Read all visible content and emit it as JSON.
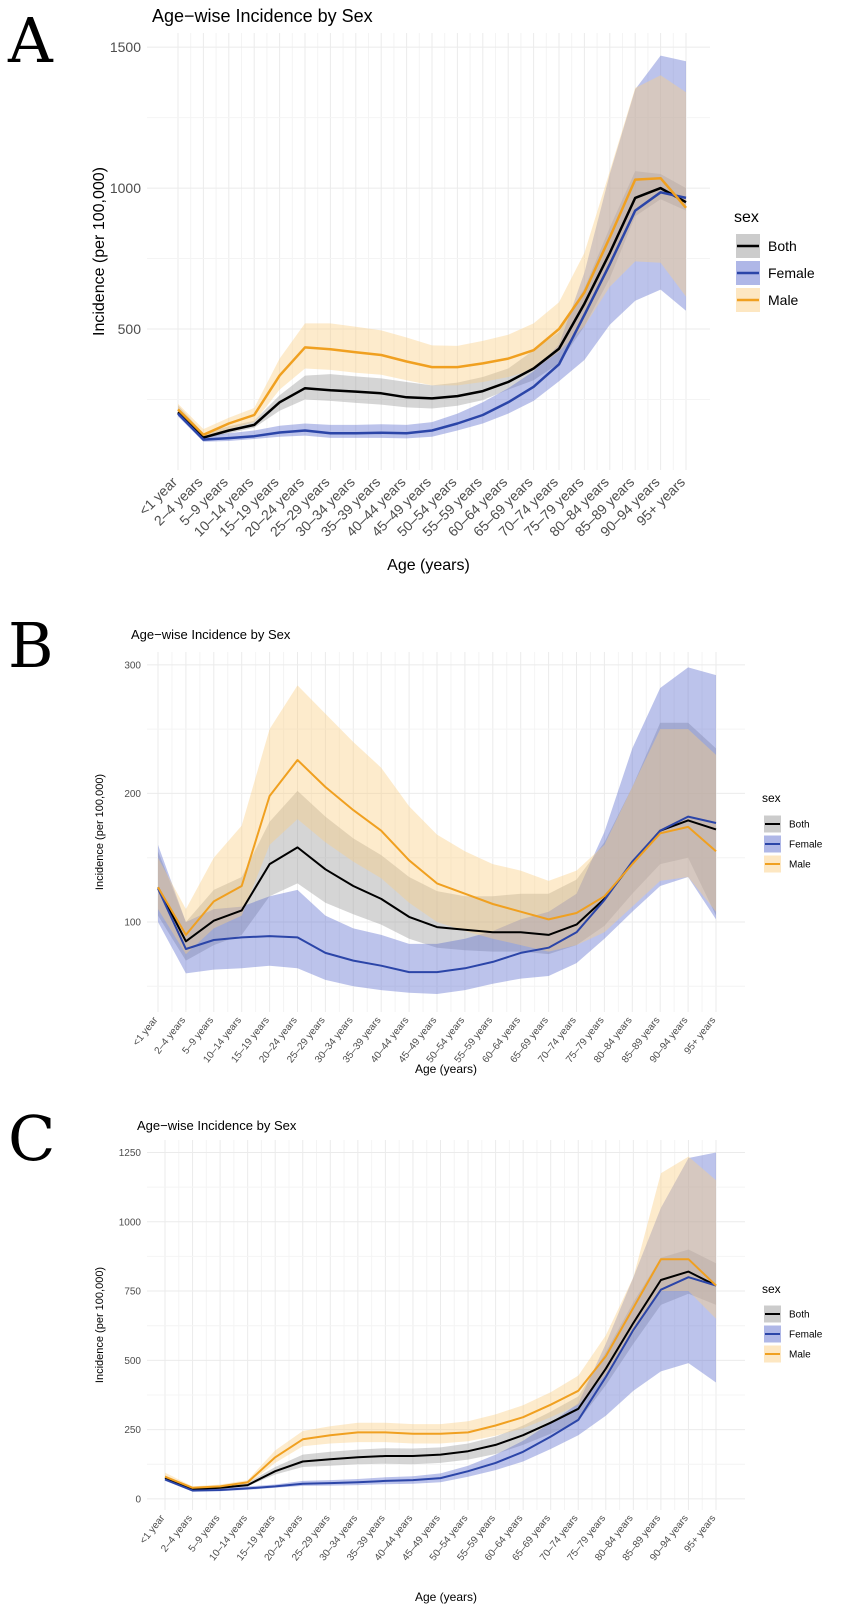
{
  "chart_data": [
    {
      "panel": "A",
      "type": "line",
      "title": "Age−wise Incidence by Sex",
      "xlabel": "Age (years)",
      "ylabel": "Incidence (per 100,000)",
      "ylim": [
        0,
        1550
      ],
      "yticks": [
        500,
        1000,
        1500
      ],
      "categories": [
        "<1 year",
        "2–4 years",
        "5–9 years",
        "10–14 years",
        "15–19 years",
        "20–24 years",
        "25–29 years",
        "30–34 years",
        "35–39 years",
        "40–44 years",
        "45–49 years",
        "50–54 years",
        "55–59 years",
        "60–64 years",
        "65–69 years",
        "70–74 years",
        "75–79 years",
        "80–84 years",
        "85–89 years",
        "90–94 years",
        "95+ years"
      ],
      "legend_title": "sex",
      "legend_position": "right",
      "series": [
        {
          "name": "Both",
          "color": "#000000",
          "fill": "#9a9a9a",
          "values": [
            205,
            115,
            140,
            160,
            240,
            290,
            283,
            278,
            272,
            258,
            254,
            262,
            280,
            312,
            360,
            430,
            590,
            770,
            965,
            1000,
            950
          ],
          "lower": [
            195,
            110,
            130,
            150,
            210,
            250,
            245,
            238,
            232,
            222,
            218,
            228,
            248,
            285,
            318,
            378,
            510,
            680,
            900,
            960,
            920
          ],
          "upper": [
            230,
            130,
            155,
            175,
            265,
            335,
            340,
            332,
            325,
            312,
            300,
            310,
            330,
            360,
            425,
            490,
            645,
            860,
            1060,
            1050,
            1000
          ]
        },
        {
          "name": "Female",
          "color": "#2b45a8",
          "fill": "#5f6fd0",
          "values": [
            200,
            108,
            113,
            120,
            133,
            140,
            130,
            130,
            132,
            130,
            140,
            165,
            195,
            240,
            295,
            375,
            550,
            730,
            920,
            985,
            965
          ],
          "lower": [
            190,
            100,
            103,
            110,
            118,
            122,
            114,
            114,
            114,
            112,
            118,
            140,
            165,
            200,
            245,
            315,
            390,
            515,
            600,
            640,
            565
          ],
          "upper": [
            215,
            120,
            130,
            140,
            157,
            165,
            160,
            160,
            162,
            160,
            170,
            200,
            240,
            290,
            350,
            445,
            700,
            1050,
            1350,
            1470,
            1450
          ]
        },
        {
          "name": "Male",
          "color": "#f0a020",
          "fill": "#fbcf86",
          "values": [
            215,
            125,
            165,
            195,
            335,
            435,
            428,
            418,
            408,
            385,
            365,
            365,
            378,
            395,
            425,
            500,
            630,
            825,
            1030,
            1035,
            930
          ],
          "lower": [
            200,
            115,
            145,
            170,
            285,
            360,
            355,
            345,
            338,
            318,
            300,
            300,
            312,
            330,
            355,
            420,
            510,
            650,
            740,
            735,
            615
          ],
          "upper": [
            235,
            145,
            185,
            220,
            395,
            520,
            520,
            508,
            495,
            470,
            442,
            440,
            458,
            480,
            520,
            595,
            770,
            1060,
            1355,
            1400,
            1340
          ]
        }
      ]
    },
    {
      "panel": "B",
      "type": "line",
      "title": "Age−wise Incidence by Sex",
      "xlabel": "Age (years)",
      "ylabel": "Incidence (per 100,000)",
      "ylim": [
        30,
        310
      ],
      "yticks": [
        100,
        200,
        300
      ],
      "categories": [
        "<1 year",
        "2–4 years",
        "5–9 years",
        "10–14 years",
        "15–19 years",
        "20–24 years",
        "25–29 years",
        "30–34 years",
        "35–39 years",
        "40–44 years",
        "45–49 years",
        "50–54 years",
        "55–59 years",
        "60–64 years",
        "65–69 years",
        "70–74 years",
        "75–79 years",
        "80–84 years",
        "85–89 years",
        "90–94 years",
        "95+ years"
      ],
      "legend_title": "sex",
      "legend_position": "right",
      "series": [
        {
          "name": "Both",
          "color": "#000000",
          "fill": "#9a9a9a",
          "values": [
            127,
            85,
            101,
            109,
            145,
            158,
            141,
            128,
            118,
            104,
            96,
            94,
            92,
            92,
            90,
            98,
            118,
            146,
            171,
            179,
            172
          ],
          "lower": [
            105,
            70,
            82,
            90,
            120,
            130,
            115,
            106,
            98,
            87,
            80,
            78,
            77,
            77,
            75,
            82,
            97,
            122,
            145,
            150,
            105
          ],
          "upper": [
            155,
            100,
            125,
            135,
            178,
            202,
            182,
            165,
            152,
            135,
            124,
            120,
            120,
            122,
            122,
            133,
            162,
            205,
            255,
            255,
            235
          ]
        },
        {
          "name": "Female",
          "color": "#2b45a8",
          "fill": "#5f6fd0",
          "values": [
            126,
            79,
            86,
            88,
            89,
            88,
            76,
            70,
            66,
            61,
            61,
            64,
            69,
            76,
            80,
            92,
            117,
            147,
            171,
            182,
            177
          ],
          "lower": [
            100,
            60,
            63,
            64,
            66,
            64,
            55,
            50,
            47,
            45,
            44,
            47,
            52,
            56,
            58,
            68,
            87,
            108,
            128,
            135,
            102
          ],
          "upper": [
            160,
            100,
            110,
            112,
            120,
            125,
            105,
            95,
            90,
            83,
            83,
            87,
            93,
            102,
            108,
            122,
            170,
            235,
            282,
            298,
            292
          ]
        },
        {
          "name": "Male",
          "color": "#f0a020",
          "fill": "#fbcf86",
          "values": [
            127,
            90,
            116,
            128,
            198,
            226,
            205,
            187,
            171,
            148,
            130,
            122,
            114,
            108,
            102,
            107,
            120,
            145,
            169,
            174,
            155
          ],
          "lower": [
            110,
            75,
            95,
            105,
            160,
            180,
            162,
            147,
            134,
            115,
            100,
            93,
            87,
            82,
            77,
            82,
            92,
            112,
            132,
            135,
            108
          ],
          "upper": [
            150,
            110,
            150,
            175,
            250,
            284,
            262,
            240,
            220,
            190,
            168,
            155,
            145,
            140,
            132,
            140,
            160,
            205,
            250,
            250,
            230
          ]
        }
      ]
    },
    {
      "panel": "C",
      "type": "line",
      "title": "Age−wise Incidence by Sex",
      "xlabel": "Age (years)",
      "ylabel": "Incidence (per 100,000)",
      "ylim": [
        -40,
        1295
      ],
      "yticks": [
        0,
        250,
        500,
        750,
        1000,
        1250
      ],
      "categories": [
        "<1 year",
        "2–4 years",
        "5–9 years",
        "10–14 years",
        "15–19 years",
        "20–24 years",
        "25–29 years",
        "30–34 years",
        "35–39 years",
        "40–44 years",
        "45–49 years",
        "50–54 years",
        "55–59 years",
        "60–64 years",
        "65–69 years",
        "70–74 years",
        "75–79 years",
        "80–84 years",
        "85–89 years",
        "90–94 years",
        "95+ years"
      ],
      "legend_title": "sex",
      "legend_position": "right",
      "series": [
        {
          "name": "Both",
          "color": "#000000",
          "fill": "#9a9a9a",
          "values": [
            75,
            35,
            40,
            50,
            100,
            135,
            143,
            150,
            155,
            155,
            160,
            172,
            195,
            230,
            275,
            325,
            470,
            635,
            790,
            820,
            770
          ],
          "lower": [
            70,
            32,
            36,
            46,
            88,
            115,
            120,
            125,
            127,
            125,
            130,
            142,
            162,
            195,
            235,
            280,
            410,
            560,
            700,
            740,
            700
          ],
          "upper": [
            85,
            40,
            46,
            58,
            115,
            160,
            170,
            178,
            183,
            182,
            186,
            200,
            225,
            265,
            315,
            370,
            530,
            710,
            870,
            900,
            850
          ]
        },
        {
          "name": "Female",
          "color": "#2b45a8",
          "fill": "#5f6fd0",
          "values": [
            70,
            30,
            32,
            38,
            45,
            55,
            57,
            60,
            65,
            68,
            75,
            100,
            130,
            170,
            225,
            285,
            440,
            610,
            755,
            800,
            770
          ],
          "lower": [
            65,
            27,
            28,
            33,
            40,
            47,
            48,
            50,
            53,
            55,
            60,
            80,
            104,
            135,
            180,
            230,
            300,
            390,
            460,
            490,
            420
          ],
          "upper": [
            80,
            35,
            38,
            45,
            52,
            65,
            68,
            72,
            78,
            82,
            92,
            120,
            160,
            210,
            275,
            345,
            560,
            800,
            1050,
            1230,
            1250
          ]
        },
        {
          "name": "Male",
          "color": "#f0a020",
          "fill": "#fbcf86",
          "values": [
            80,
            40,
            45,
            60,
            150,
            215,
            230,
            240,
            240,
            235,
            235,
            240,
            265,
            295,
            340,
            390,
            515,
            690,
            865,
            865,
            770
          ],
          "lower": [
            70,
            35,
            40,
            53,
            130,
            190,
            200,
            205,
            205,
            200,
            200,
            208,
            228,
            255,
            295,
            340,
            450,
            600,
            750,
            750,
            650
          ],
          "upper": [
            95,
            45,
            52,
            68,
            175,
            245,
            262,
            275,
            275,
            270,
            270,
            280,
            305,
            338,
            385,
            445,
            590,
            800,
            1175,
            1235,
            1150
          ]
        }
      ]
    }
  ]
}
